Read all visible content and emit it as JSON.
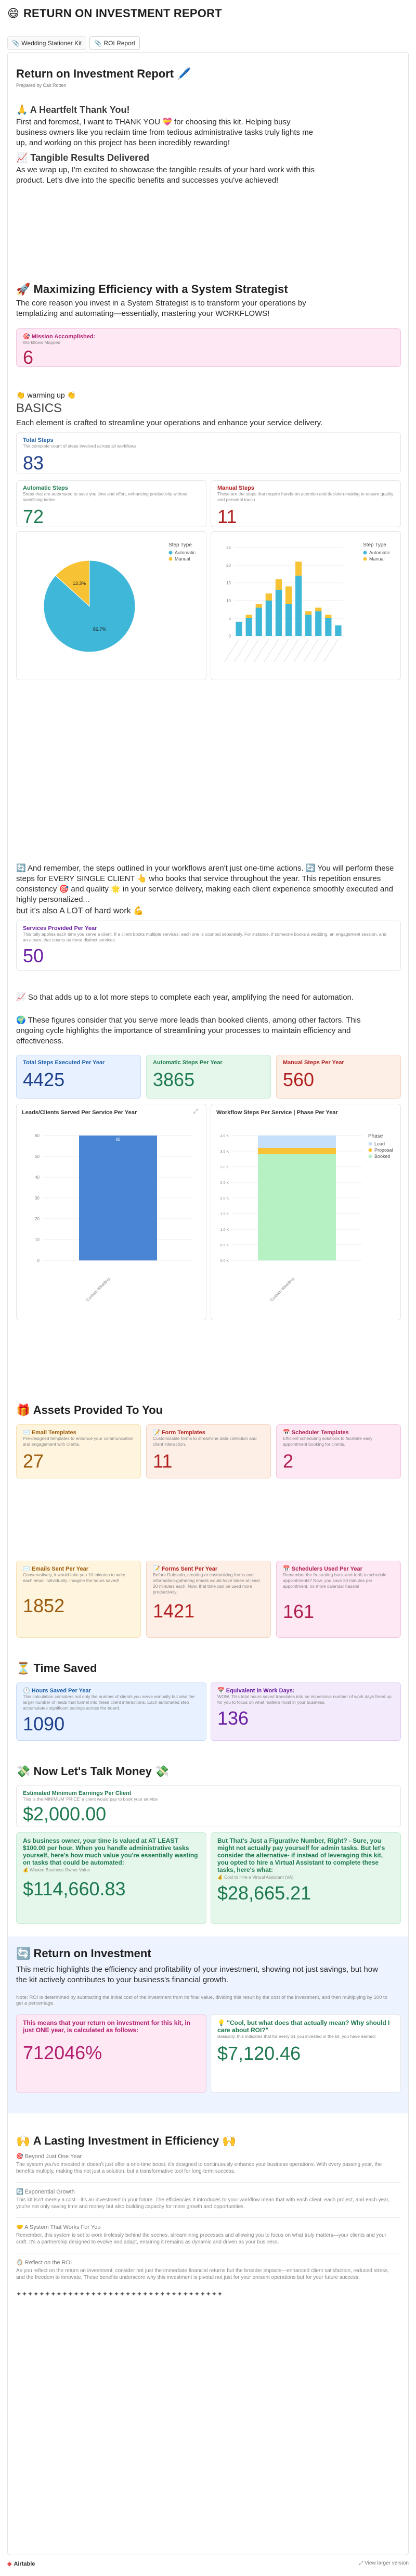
{
  "app": {
    "title": "RETURN ON INVESTMENT REPORT",
    "icon": "😄"
  },
  "tabs": [
    {
      "label": "Wedding Stationer Kit"
    },
    {
      "label": "ROI Report"
    }
  ],
  "report": {
    "title": "Return on Investment Report 🖊️",
    "prepared_by": "Prepared by Cait Rotten"
  },
  "thanks": {
    "heading": "🙏 A Heartfelt Thank You!",
    "body": "First and foremost, I want to THANK YOU 💝 for choosing this kit. Helping busy business owners like you reclaim time from tedious administrative tasks truly lights me up, and working on this project has been incredibly rewarding!"
  },
  "results": {
    "heading": "📈 Tangible Results Delivered",
    "body": "As we wrap up, I'm excited to showcase the tangible results of your hard work with this product. Let's dive into the specific benefits and successes you've achieved!"
  },
  "efficiency": {
    "heading": "🚀 Maximizing Efficiency with a System Strategist",
    "body": "The core reason you invest in a System Strategist is to transform your operations by templatizing and automating—essentially, mastering your WORKFLOWS!",
    "mission_label": "🎯 Mission Accomplished:",
    "mission_sub": "Workflows Mapped",
    "mission_value": "6"
  },
  "basics": {
    "warm": "👏 warming up 👏",
    "title": "BASICS",
    "desc": "Each element is crafted to streamline your operations and enhance your service delivery.",
    "total_label": "Total Steps",
    "total_desc": "The complete count of steps involved across all workflows",
    "total_value": "83",
    "auto_label": "Automatic Steps",
    "auto_desc": "Steps that are automated to save you time and effort, enhancing productivity without sacrificing better",
    "auto_value": "72",
    "manual_label": "Manual Steps",
    "manual_desc": "These are the steps that require hands-on attention and decision-making to ensure quality and personal touch",
    "manual_value": "11"
  },
  "steps_text": {
    "p1": "🔄 And remember, the steps outlined in your workflows aren't just one-time actions. 🔄 You will perform these steps for EVERY SINGLE CLIENT 👆 who books that service throughout the year. This repetition ensures consistency 🎯 and quality 🌟 in your service delivery, making each client experience smoothly executed and highly personalized...",
    "p2": "but it's also A LOT of hard work 💪",
    "services_label": "Services Provided Per Year",
    "services_desc": "This tally applies each time you serve a client. If a client books multiple services, each one is counted separately. For instance, if someone books a wedding, an engagement session, and an album, that counts as three distinct services.",
    "services_value": "50"
  },
  "adds": {
    "p1": "📈 So that adds up to a lot more steps to complete each year, amplifying the need for automation.",
    "p2": "🌍 These figures consider that you serve more leads than booked clients, among other factors. This ongoing cycle highlights the importance of streamlining your processes to maintain efficiency and effectiveness.",
    "total_label": "Total Steps Executed Per Year",
    "total_value": "4425",
    "auto_label": "Automatic Steps Per Year",
    "auto_value": "3865",
    "manual_label": "Manual Steps Per Year",
    "manual_value": "560"
  },
  "assets": {
    "heading": "🎁 Assets Provided To You",
    "items": [
      {
        "label": "✉️ Email Templates",
        "desc": "Pre-designed templates to enhance your communication and engagement with clients.",
        "value": "27"
      },
      {
        "label": "📝 Form Templates",
        "desc": "Customizable forms to streamline data collection and client interaction.",
        "value": "11"
      },
      {
        "label": "📅 Scheduler Templates",
        "desc": "Efficient scheduling solutions to facilitate easy appointment booking for clients.",
        "value": "2"
      }
    ],
    "yearly": [
      {
        "label": "✉️ Emails Sent Per Year",
        "desc": "Conservatively, it would take you 10 minutes to write each email individually. Imagine the hours saved!",
        "value": "1852"
      },
      {
        "label": "📝 Forms Sent Per Year",
        "desc": "Before Dubsado, creating or customizing forms and information-gathering emails would have taken at least 20 minutes each. Now, that time can be used more productively.",
        "value": "1421"
      },
      {
        "label": "📅 Schedulers Used Per Year",
        "desc": "Remember the frustrating back-and-forth to schedule appointments? Now, you save 30 minutes per appointment, no more calendar hassle!",
        "value": "161"
      }
    ]
  },
  "time": {
    "heading": "⏳ Time Saved",
    "hours_label": "🕐 Hours Saved Per Year",
    "hours_desc": "This calculation considers not only the number of clients you serve annually but also the larger number of leads that funnel into these client interactions. Each automated step accumulates significant savings across the board.",
    "hours_value": "1090",
    "days_label": "📅 Equivalent in Work Days:",
    "days_desc": "WOW. This total hours saved translates into an impressive number of work days freed up for you to focus on what matters most in your business.",
    "days_value": "136"
  },
  "money": {
    "heading": "💸 Now Let's Talk Money 💸",
    "min_label": "Estimated Minimum Earnings Per Client",
    "min_desc": "This is the MINIMUM 'PRICE' a client would pay to book your service",
    "min_value": "$2,000.00",
    "biz_label": "As business owner, your time is valued at AT LEAST $100.00 per hour. When you handle administrative tasks yourself, here's how much value you're essentially wasting on tasks that could be automated:",
    "biz_sub": "💰 Wasted Business Owner Value",
    "biz_value": "$114,660.83",
    "va_label": "But That's Just a Figurative Number, Right? - Sure, you might not actually pay yourself for admin tasks. But let's consider the alternative- if instead of leveraging this kit, you opted to hire a Virtual Assistant to complete these tasks, here's what:",
    "va_sub": "💰 Cost to Hire a Virtual Assistant (VA)",
    "va_value": "$28,665.21"
  },
  "roi": {
    "heading": "🔄 Return on Investment",
    "body": "This metric highlights the efficiency and profitability of your investment, showing not just savings, but how the kit actively contributes to your business's financial growth.",
    "note": "Note: ROI is determined by subtracting the initial cost of the investment from its final value, dividing this result by the cost of the investment, and then multiplying by 100 to get a percentage.",
    "pct_label": "This means that your return on investment for this kit, in just ONE year, is calculated as follows:",
    "pct_value": "712046%",
    "cool_label": "💡 \"Cool, but what does that actually mean? Why should I care about ROI?\"",
    "cool_desc": "Basically, this indicates that for every $1 you invested in the kit, you have earned:",
    "cool_value": "$7,120.46"
  },
  "lasting": {
    "heading": "🙌 A Lasting Investment in Efficiency 🙌",
    "beyond_t": "🎯 Beyond Just One Year",
    "beyond_b": "The system you've invested in doesn't just offer a one-time boost; it's designed to continuously enhance your business operations. With every passing year, the benefits multiply, making this not just a solution, but a transformative tool for long-term success.",
    "exp_t": "🔄 Exponential Growth",
    "exp_b": "This kit isn't merely a cost—it's an investment in your future. The efficiencies it introduces to your workflow mean that with each client, each project, and each year, you're not only saving time and money but also building capacity for more growth and opportunities.",
    "sys_t": "🤝 A System That Works For You",
    "sys_b": "Remember, this system is set to work tirelessly behind the scenes, streamlining processes and allowing you to focus on what truly matters—your clients and your craft. It's a partnership designed to evolve and adapt, ensuring it remains as dynamic and driven as your business.",
    "ref_t": "🪞 Reflect on the ROI",
    "ref_b": "As you reflect on the return on investment, consider not just the immediate financial returns but the broader impacts—enhanced client satisfaction, reduced stress, and the freedom to innovate. These benefits underscore why this investment is pivotal not just for your present operations but for your future success.",
    "stars": "✦✦✦✦✦✦✦✦✦✦✦✦✦✦✦✦✦✦✦✦✦✦✦✦✦✦✦✦✦✦✦✦✦✦✦✦"
  },
  "footer": {
    "brand": "Airtable",
    "right": "View larger version"
  },
  "colors": {
    "auto": "#3fb7d9",
    "manual": "#f7c234",
    "bar_blue": "#4a85d4",
    "green": "#b6f1c4",
    "light_blue": "#c6e0fb",
    "teal": "#1f7a4f",
    "red": "#b11f1f",
    "purple": "#6b1fa3",
    "blue": "#1d3f8a",
    "orange": "#9b5c0d",
    "pink": "#b21f4f"
  },
  "charts": {
    "pie": {
      "title": "Step Type",
      "legend": [
        "Automatic",
        "Manual"
      ]
    },
    "stacked": {
      "title": "Step Type",
      "legend": [
        "Automatic",
        "Manual"
      ]
    },
    "leads": {
      "title": "Leads/Clients Served Per Service Per Year"
    },
    "phase": {
      "title": "Workflow Steps Per Service | Phase Per Year",
      "legend_title": "Phase",
      "legend": [
        "Lead",
        "Proposal",
        "Booked"
      ]
    }
  },
  "chart_data": [
    {
      "type": "pie",
      "title": "Step Type",
      "categories": [
        "Automatic",
        "Manual"
      ],
      "values": [
        86.7,
        13.3
      ],
      "labels": [
        "86.7%",
        "13.3%"
      ]
    },
    {
      "type": "bar",
      "title": "Step Type",
      "categories": [
        "a",
        "b",
        "c",
        "d",
        "e",
        "f",
        "g",
        "h",
        "i",
        "j",
        "k"
      ],
      "series": [
        {
          "name": "Automatic",
          "values": [
            4,
            5,
            8,
            10,
            13,
            9,
            17,
            6,
            7,
            5,
            3
          ]
        },
        {
          "name": "Manual",
          "values": [
            0,
            1,
            1,
            2,
            3,
            5,
            4,
            1,
            1,
            1,
            0
          ]
        }
      ],
      "ylim": [
        0,
        25
      ]
    },
    {
      "type": "bar",
      "title": "Leads/Clients Served Per Service Per Year",
      "categories": [
        "Custom Wedding"
      ],
      "values": [
        60
      ],
      "ylim": [
        0,
        60
      ]
    },
    {
      "type": "bar",
      "title": "Workflow Steps Per Service | Phase Per Year",
      "categories": [
        "Custom Wedding"
      ],
      "series": [
        {
          "name": "Lead",
          "values": [
            0.4
          ]
        },
        {
          "name": "Proposal",
          "values": [
            0.2
          ]
        },
        {
          "name": "Booked",
          "values": [
            3.4
          ]
        }
      ],
      "ylim": [
        0,
        4
      ]
    }
  ]
}
